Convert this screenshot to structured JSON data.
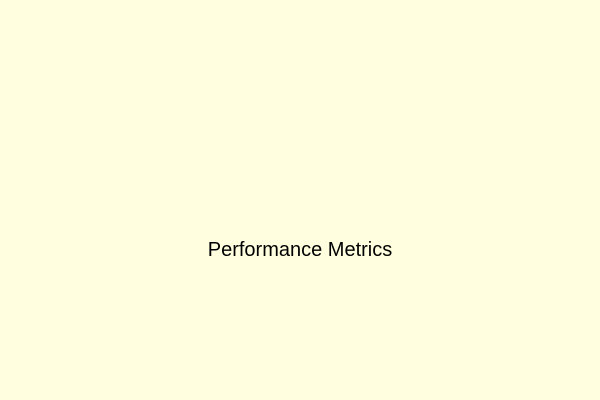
{
  "title": "Performance Metrics",
  "background_color": "#FFFFE0",
  "text_color": "#000000"
}
